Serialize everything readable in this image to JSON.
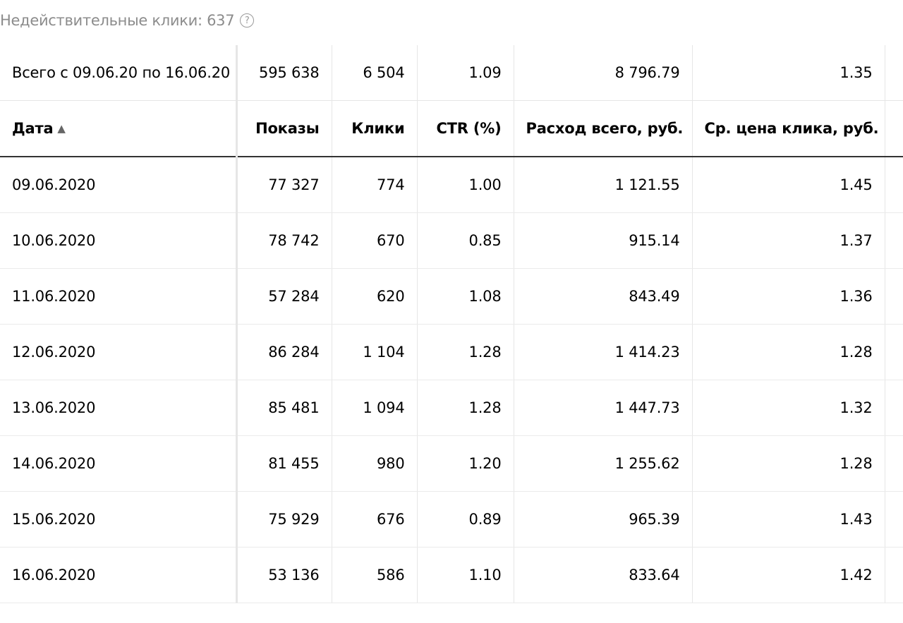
{
  "top": {
    "invalid_clicks_text": "Недействительные клики: 637",
    "help_icon": "?"
  },
  "summary": {
    "label": "Всего с 09.06.20 по 16.06.20",
    "impressions": "595 638",
    "clicks": "6 504",
    "ctr": "1.09",
    "spend": "8 796.79",
    "avg_cpc": "1.35"
  },
  "headers": {
    "date": "Дата",
    "sort_indicator": "▲",
    "impressions": "Показы",
    "clicks": "Клики",
    "ctr": "CTR (%)",
    "spend": "Расход всего, руб.",
    "avg_cpc": "Ср. цена клика, руб."
  },
  "rows": [
    {
      "date": "09.06.2020",
      "impressions": "77 327",
      "clicks": "774",
      "ctr": "1.00",
      "spend": "1 121.55",
      "avg_cpc": "1.45"
    },
    {
      "date": "10.06.2020",
      "impressions": "78 742",
      "clicks": "670",
      "ctr": "0.85",
      "spend": "915.14",
      "avg_cpc": "1.37"
    },
    {
      "date": "11.06.2020",
      "impressions": "57 284",
      "clicks": "620",
      "ctr": "1.08",
      "spend": "843.49",
      "avg_cpc": "1.36"
    },
    {
      "date": "12.06.2020",
      "impressions": "86 284",
      "clicks": "1 104",
      "ctr": "1.28",
      "spend": "1 414.23",
      "avg_cpc": "1.28"
    },
    {
      "date": "13.06.2020",
      "impressions": "85 481",
      "clicks": "1 094",
      "ctr": "1.28",
      "spend": "1 447.73",
      "avg_cpc": "1.32"
    },
    {
      "date": "14.06.2020",
      "impressions": "81 455",
      "clicks": "980",
      "ctr": "1.20",
      "spend": "1 255.62",
      "avg_cpc": "1.28"
    },
    {
      "date": "15.06.2020",
      "impressions": "75 929",
      "clicks": "676",
      "ctr": "0.89",
      "spend": "965.39",
      "avg_cpc": "1.43"
    },
    {
      "date": "16.06.2020",
      "impressions": "53 136",
      "clicks": "586",
      "ctr": "1.10",
      "spend": "833.64",
      "avg_cpc": "1.42"
    }
  ]
}
